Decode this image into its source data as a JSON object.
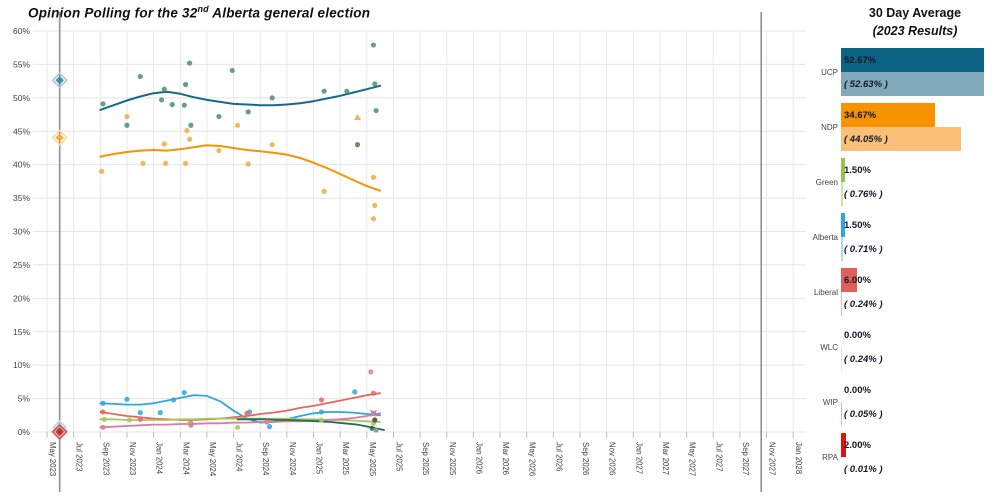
{
  "title": {
    "prefix": "Opinion Polling for the 32",
    "sup": "nd",
    "suffix": " Alberta general election"
  },
  "panel": {
    "header_line1": "30 Day Average",
    "header_line2": "(2023 Results)",
    "parties": [
      {
        "name": "UCP",
        "avg": 52.67,
        "result": 52.63,
        "avg_label": "52.67%",
        "result_label": "( 52.63% )",
        "color": "#0d6384",
        "light": "#82a9ba"
      },
      {
        "name": "NDP",
        "avg": 34.67,
        "result": 44.05,
        "avg_label": "34.67%",
        "result_label": "( 44.05% )",
        "color": "#f59300",
        "light": "#fbc077"
      },
      {
        "name": "Green",
        "avg": 1.5,
        "result": 0.76,
        "avg_label": "1.50%",
        "result_label": "( 0.76% )",
        "color": "#97c24e",
        "light": "#cfe5a4"
      },
      {
        "name": "Alberta",
        "avg": 1.5,
        "result": 0.71,
        "avg_label": "1.50%",
        "result_label": "( 0.71% )",
        "color": "#2fa6de",
        "light": "#aadcf2"
      },
      {
        "name": "Liberal",
        "avg": 6.0,
        "result": 0.24,
        "avg_label": "6.00%",
        "result_label": "( 0.24% )",
        "color": "#e05f5b",
        "light": "#f2b3b0"
      },
      {
        "name": "WLC",
        "avg": 0.0,
        "result": 0.24,
        "avg_label": "0.00%",
        "result_label": "( 0.24% )",
        "color": "#c9c9c9",
        "light": "#e6e6e6"
      },
      {
        "name": "WIP",
        "avg": 0.0,
        "result": 0.05,
        "avg_label": "0.00%",
        "result_label": "( 0.05% )",
        "color": "#1f6f58",
        "light": "#a8cfc4"
      },
      {
        "name": "RPA",
        "avg": 2.0,
        "result": 0.01,
        "avg_label": "2.00%",
        "result_label": "( 0.01% )",
        "color": "#e01212",
        "light": "#f3a0a0"
      }
    ]
  },
  "chart_data": {
    "type": "scatter",
    "title": "Opinion Polling for the 32nd Alberta general election",
    "xlabel": "",
    "ylabel": "",
    "x_ticks": [
      "May 2023",
      "Jul 2023",
      "Sep 2023",
      "Nov 2023",
      "Jan 2024",
      "Mar 2024",
      "May 2024",
      "Jul 2024",
      "Sep 2024",
      "Nov 2024",
      "Jan 2025",
      "Mar 2025",
      "May 2025",
      "Jul 2025",
      "Sep 2025",
      "Nov 2025",
      "Jan 2026",
      "Mar 2026",
      "May 2026",
      "Jul 2026",
      "Sep 2026",
      "Nov 2026",
      "Jan 2027",
      "Mar 2027",
      "May 2027",
      "Jul 2027",
      "Sep 2027",
      "Nov 2027",
      "Jan 2028"
    ],
    "y_ticks": [
      "0%",
      "5%",
      "10%",
      "15%",
      "20%",
      "25%",
      "30%",
      "35%",
      "40%",
      "45%",
      "50%",
      "55%",
      "60%"
    ],
    "ylim": [
      0,
      60
    ],
    "grid": true,
    "election_lines_months_from_may2023": [
      0.95,
      53.6
    ],
    "results_2023_markers": [
      {
        "party": "UCP",
        "value": 52.63,
        "fill": "#3d85a0",
        "stroke": "#a9c4d2",
        "size": 7
      },
      {
        "party": "NDP",
        "value": 44.05,
        "fill": "#f5a83e",
        "stroke": "#fbd9a0",
        "size": 7
      },
      {
        "party": "Green",
        "value": 0.76,
        "fill": "#a9c65a",
        "stroke": "#d2e3a8",
        "size": 6
      },
      {
        "party": "Alberta",
        "value": 0.71,
        "fill": "#3fa8dc",
        "stroke": "#aadcf2",
        "size": 6
      },
      {
        "party": "WLC",
        "value": 0.24,
        "fill": "#bbbbbb",
        "stroke": "#dddddd",
        "size": 5
      },
      {
        "party": "WIP",
        "value": 0.05,
        "fill": "#1f6f58",
        "stroke": "#9cc9bd",
        "size": 5
      },
      {
        "party": "Liberal",
        "value": 0.24,
        "fill": "#e0635e",
        "stroke": "#f0b5b2",
        "size": 6
      },
      {
        "party": "RPA",
        "value": 0.01,
        "fill": "#b03434",
        "stroke": "#e05050",
        "size": 7
      }
    ],
    "series": [
      {
        "name": "UCP",
        "line_color": "#17698a",
        "dot_color": "#4d8c7b",
        "line_width": 2,
        "trend": {
          "start_month": 4,
          "step": 1,
          "values": [
            48.2,
            48.9,
            49.6,
            50.2,
            50.7,
            50.9,
            50.6,
            50.1,
            49.7,
            49.4,
            49.1,
            49.0,
            48.9,
            48.9,
            49.0,
            49.2,
            49.5,
            49.9,
            50.3,
            50.8,
            51.3,
            51.8
          ]
        },
        "points": [
          [
            4.2,
            49.1
          ],
          [
            6.0,
            45.9
          ],
          [
            7.0,
            53.2
          ],
          [
            8.6,
            49.7
          ],
          [
            8.8,
            51.3
          ],
          [
            9.4,
            49.0
          ],
          [
            10.3,
            48.9
          ],
          [
            10.4,
            52.0
          ],
          [
            10.7,
            55.2
          ],
          [
            10.8,
            45.9
          ],
          [
            12.9,
            47.2
          ],
          [
            13.9,
            54.1
          ],
          [
            15.1,
            47.9
          ],
          [
            16.9,
            50.0
          ],
          [
            20.8,
            51.0
          ],
          [
            22.5,
            51.0
          ],
          [
            24.5,
            57.9
          ],
          [
            24.6,
            52.1
          ],
          [
            24.7,
            48.1
          ]
        ]
      },
      {
        "name": "NDP",
        "line_color": "#f59300",
        "dot_color": "#f3a93e",
        "line_width": 2,
        "trend": {
          "start_month": 4,
          "step": 1,
          "values": [
            41.2,
            41.6,
            41.9,
            42.1,
            42.2,
            42.1,
            42.3,
            42.6,
            42.9,
            42.8,
            42.5,
            42.2,
            42.0,
            41.8,
            41.5,
            41.0,
            40.3,
            39.5,
            38.6,
            37.7,
            36.8,
            36.1
          ]
        },
        "points": [
          [
            4.1,
            39.0
          ],
          [
            6.0,
            47.2
          ],
          [
            7.2,
            40.2
          ],
          [
            8.8,
            43.1
          ],
          [
            8.9,
            40.2
          ],
          [
            10.4,
            40.2
          ],
          [
            10.5,
            45.1
          ],
          [
            10.7,
            43.8
          ],
          [
            12.9,
            42.1
          ],
          [
            14.3,
            45.9
          ],
          [
            15.1,
            40.1
          ],
          [
            16.9,
            43.0
          ],
          [
            20.8,
            36.0
          ],
          [
            24.5,
            38.1
          ],
          [
            24.6,
            33.9
          ],
          [
            24.5,
            31.9
          ]
        ]
      },
      {
        "name": "Alberta",
        "line_color": "#2fa6de",
        "dot_color": "#2fa6de",
        "line_width": 1.8,
        "trend": {
          "start_month": 4,
          "step": 1,
          "values": [
            4.3,
            4.2,
            4.1,
            4.1,
            4.3,
            4.7,
            5.1,
            5.5,
            5.4,
            4.6,
            3.2,
            2.0,
            1.4,
            1.5,
            1.9,
            2.4,
            2.8,
            3.0,
            3.0,
            2.9,
            2.7,
            2.5
          ]
        },
        "points": [
          [
            4.2,
            4.3
          ],
          [
            6.0,
            4.9
          ],
          [
            7.0,
            2.9
          ],
          [
            8.5,
            2.9
          ],
          [
            9.5,
            4.8
          ],
          [
            10.3,
            5.9
          ],
          [
            15.2,
            3.0
          ],
          [
            16.7,
            0.8
          ],
          [
            20.6,
            3.0
          ],
          [
            23.1,
            6.0
          ],
          [
            24.5,
            2.8
          ]
        ]
      },
      {
        "name": "Liberal",
        "line_color": "#e06962",
        "dot_color": "#e06962",
        "line_width": 1.8,
        "trend": {
          "start_month": 4,
          "step": 1,
          "values": [
            3.0,
            2.7,
            2.4,
            2.2,
            2.0,
            1.9,
            1.8,
            1.8,
            1.9,
            2.0,
            2.2,
            2.4,
            2.7,
            2.9,
            3.2,
            3.6,
            3.9,
            4.3,
            4.7,
            5.1,
            5.5,
            5.8
          ]
        },
        "points": [
          [
            4.2,
            3.0
          ],
          [
            7.0,
            1.9
          ],
          [
            10.8,
            1.3
          ],
          [
            15.0,
            2.8
          ],
          [
            20.6,
            4.8
          ],
          [
            24.5,
            5.8
          ]
        ]
      },
      {
        "name": "Green",
        "line_color": "#a9c65a",
        "dot_color": "#a9c65a",
        "line_width": 1.8,
        "trend": {
          "start_month": 4,
          "step": 1,
          "values": [
            1.9,
            1.9,
            1.8,
            1.8,
            1.8,
            1.8,
            1.9,
            1.9,
            2.0,
            2.0,
            2.0,
            2.0,
            2.0,
            2.0,
            2.0,
            1.9,
            1.9,
            1.8,
            1.8,
            1.7,
            1.6,
            1.5
          ]
        },
        "points": [
          [
            4.3,
            1.9
          ],
          [
            6.2,
            1.8
          ],
          [
            10.7,
            1.3
          ],
          [
            14.3,
            0.7
          ],
          [
            20.6,
            1.8
          ],
          [
            24.5,
            1.3
          ]
        ]
      },
      {
        "name": "RPA",
        "line_color": "#dd7a9e",
        "dot_color": "#dd7a9e",
        "line_width": 1.8,
        "trend": {
          "start_month": 4,
          "step": 1,
          "values": [
            0.7,
            0.8,
            0.9,
            1.0,
            1.1,
            1.1,
            1.2,
            1.2,
            1.3,
            1.3,
            1.4,
            1.4,
            1.5,
            1.5,
            1.6,
            1.6,
            1.7,
            1.8,
            1.9,
            2.1,
            2.4,
            2.8
          ]
        },
        "points": [
          [
            4.2,
            0.7
          ],
          [
            10.8,
            1.0
          ],
          [
            16.5,
            1.5
          ],
          [
            24.3,
            9.0
          ]
        ]
      },
      {
        "name": "WIP",
        "line_color": "#1f6f58",
        "dot_color": "#1f6f58",
        "line_width": 1.8,
        "trend": {
          "start_month": 14.3,
          "step": 1,
          "values": [
            1.9,
            1.9,
            1.9,
            1.8,
            1.8,
            1.7,
            1.6,
            1.5,
            1.3,
            1.1,
            0.7,
            0.3
          ]
        },
        "points": [
          [
            24.4,
            0.55
          ]
        ]
      }
    ],
    "special_points": [
      {
        "series": "NDP",
        "m": 23.3,
        "v": 47.1,
        "marker": "triangle",
        "color": "#f3a93e"
      },
      {
        "series": "RPA",
        "m": 24.5,
        "v": 2.8,
        "marker": "x",
        "color": "#dd7a9e"
      },
      {
        "series": "other",
        "m": 23.3,
        "v": 43.0,
        "marker": "dot",
        "color": "#72755f"
      },
      {
        "series": "other",
        "m": 24.6,
        "v": 1.8,
        "marker": "dot",
        "color": "#53443c"
      },
      {
        "series": "other",
        "m": 24.7,
        "v": 0.3,
        "marker": "dot",
        "color": "#909090"
      }
    ]
  }
}
